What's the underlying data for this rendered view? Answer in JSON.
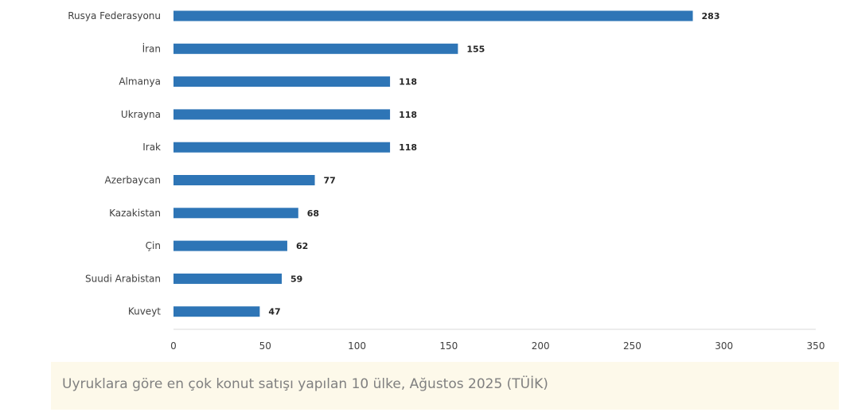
{
  "chart_data": {
    "type": "bar",
    "orientation": "horizontal",
    "categories": [
      "Rusya Federasyonu",
      "İran",
      "Almanya",
      "Ukrayna",
      "Irak",
      "Azerbaycan",
      "Kazakistan",
      "Çin",
      "Suudi Arabistan",
      "Kuveyt"
    ],
    "values": [
      283,
      155,
      118,
      118,
      118,
      77,
      68,
      62,
      59,
      47
    ],
    "xlim": [
      0,
      350
    ],
    "xticks": [
      0,
      50,
      100,
      150,
      200,
      250,
      300,
      350
    ],
    "bar_color": "#2e75b6",
    "grid": false,
    "data_labels": true
  },
  "caption": "Uyruklara göre en çok konut satışı yapılan 10 ülke, Ağustos 2025 (TÜİK)"
}
